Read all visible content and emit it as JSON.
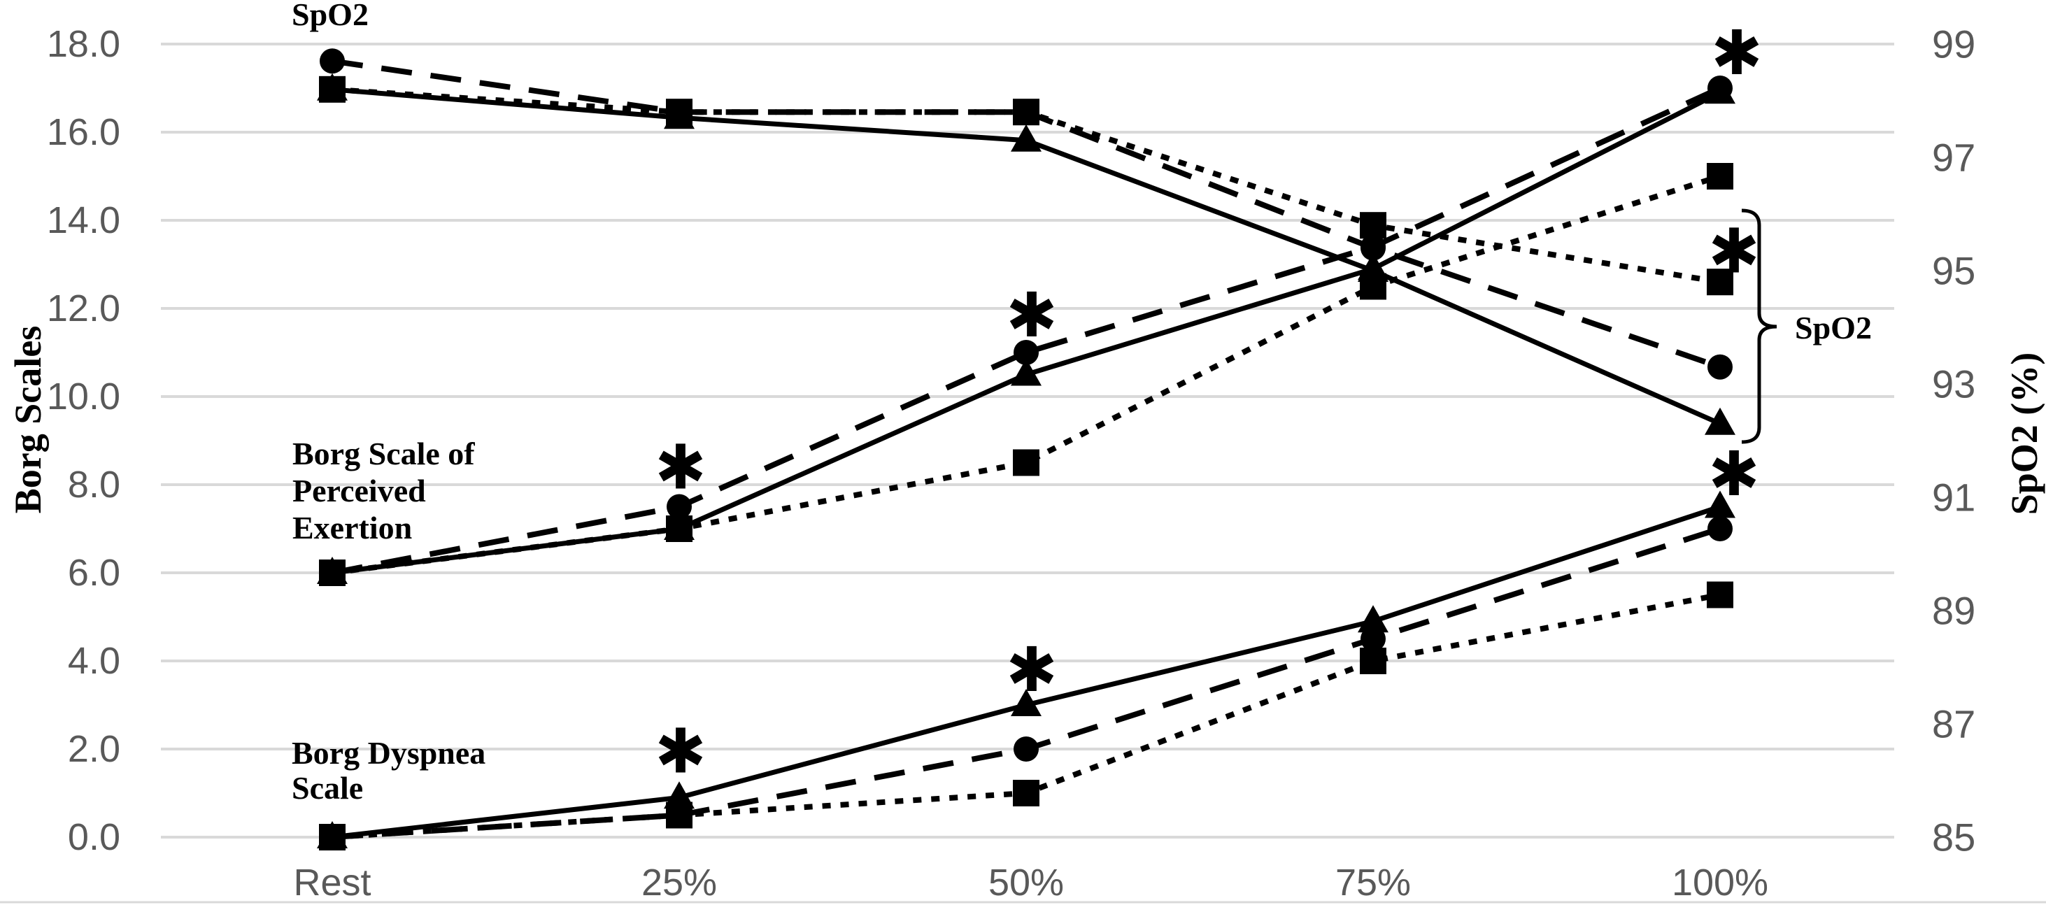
{
  "chart_data": {
    "type": "line",
    "title": "",
    "x_categories": [
      "Rest",
      "25%",
      "50%",
      "75%",
      "100%"
    ],
    "left_axis": {
      "title": "Borg Scales",
      "range": [
        0,
        18
      ],
      "tick_labels": [
        "18.0",
        "16.0",
        "14.0",
        "12.0",
        "10.0",
        "8.0",
        "6.0",
        "4.0",
        "2.0",
        "0.0"
      ],
      "grid": true
    },
    "right_axis": {
      "title": "SpO2 (%)",
      "range": [
        85,
        99
      ],
      "tick_labels": [
        "99",
        "97",
        "95",
        "93",
        "91",
        "89",
        "87",
        "85"
      ]
    },
    "legend_position": "none",
    "groups": [
      {
        "name": "SpO2",
        "axis": "right",
        "series": [
          {
            "marker": "triangle",
            "line": "solid",
            "values": [
              98.2,
              97.7,
              97.3,
              95.0,
              92.3
            ]
          },
          {
            "marker": "circle",
            "line": "dashed",
            "values": [
              98.7,
              97.8,
              97.8,
              95.4,
              93.3
            ]
          },
          {
            "marker": "square",
            "line": "dotted",
            "values": [
              98.2,
              97.8,
              97.8,
              95.8,
              94.8
            ]
          }
        ]
      },
      {
        "name": "Borg Scale of Perceived Exertion",
        "axis": "left",
        "series": [
          {
            "marker": "triangle",
            "line": "solid",
            "values": [
              6.0,
              7.0,
              10.5,
              12.9,
              16.9
            ]
          },
          {
            "marker": "circle",
            "line": "dashed",
            "values": [
              6.0,
              7.5,
              11.0,
              13.4,
              17.0
            ]
          },
          {
            "marker": "square",
            "line": "dotted",
            "values": [
              6.0,
              7.0,
              8.5,
              12.5,
              15.0
            ]
          }
        ]
      },
      {
        "name": "Borg Dyspnea Scale",
        "axis": "left",
        "series": [
          {
            "marker": "triangle",
            "line": "solid",
            "values": [
              0.0,
              0.9,
              3.0,
              4.9,
              7.5
            ]
          },
          {
            "marker": "circle",
            "line": "dashed",
            "values": [
              0.0,
              0.5,
              2.0,
              4.5,
              7.0
            ]
          },
          {
            "marker": "square",
            "line": "dotted",
            "values": [
              0.0,
              0.5,
              1.0,
              4.0,
              5.5
            ]
          }
        ]
      }
    ],
    "significance_asterisks": [
      {
        "category_index": 1,
        "left_axis_y": 8.4,
        "dx": 2
      },
      {
        "category_index": 2,
        "left_axis_y": 11.85,
        "dx": 8
      },
      {
        "category_index": 4,
        "left_axis_y": 17.8,
        "dx": 24
      },
      {
        "category_index": 4,
        "left_axis_y": 13.3,
        "dx": 20
      },
      {
        "category_index": 1,
        "left_axis_y": 1.95,
        "dx": 2
      },
      {
        "category_index": 2,
        "left_axis_y": 3.8,
        "dx": 8
      },
      {
        "category_index": 4,
        "left_axis_y": 8.25,
        "dx": 20
      }
    ],
    "group_labels": [
      {
        "id": "spo2-top",
        "lines": [
          "SpO2"
        ],
        "x": 417,
        "y": 36,
        "line_height": 52
      },
      {
        "id": "exertion",
        "lines": [
          "Borg Scale of",
          "Perceived",
          "Exertion"
        ],
        "x": 418,
        "y": 664,
        "line_height": 53
      },
      {
        "id": "dyspnea",
        "lines": [
          "Borg Dyspnea",
          "Scale"
        ],
        "x": 417,
        "y": 1092,
        "line_height": 50
      }
    ],
    "bracket": {
      "label": "SpO2",
      "x": 2515,
      "y_top": 301,
      "y_bottom": 632,
      "notch_y": 467,
      "label_x": 2566,
      "label_y": 484
    },
    "colors": {
      "series": "#000000",
      "gridline": "#d9d9d9",
      "tick_text": "#595959"
    }
  }
}
